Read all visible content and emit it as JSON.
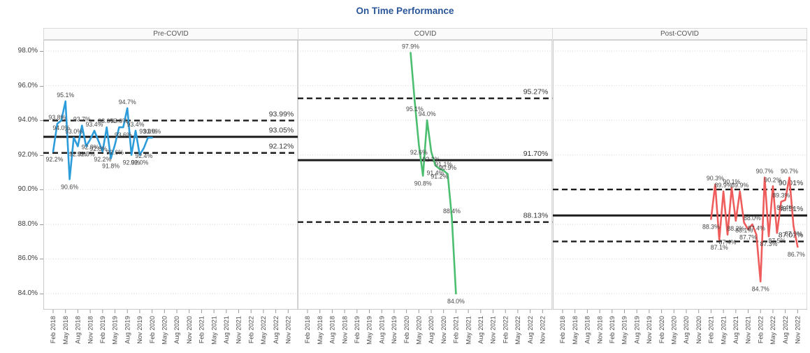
{
  "title": "On Time Performance",
  "colors": {
    "title_text": "#2a5699",
    "grid": "#d2d2d2",
    "panel_border": "#c9c9c9",
    "header_bg": "#fbfafa",
    "reference_lines": "#1c1c1c",
    "data_label": "#464646",
    "axis_text": "#4a4a4a"
  },
  "chart_data": {
    "type": "line",
    "title": "On Time Performance",
    "xlabel": "",
    "ylabel": "",
    "grid": "dotted horizontal at every 2%",
    "y_axis": {
      "ticks": [
        "98.0%",
        "96.0%",
        "94.0%",
        "92.0%",
        "90.0%",
        "88.0%",
        "86.0%",
        "84.0%"
      ],
      "tick_values": [
        98.0,
        96.0,
        94.0,
        92.0,
        90.0,
        88.0,
        86.0,
        84.0
      ],
      "ylim": [
        83.1,
        98.65
      ]
    },
    "x_ticks": [
      "Feb 2018",
      "May 2018",
      "Aug 2018",
      "Nov 2018",
      "Feb 2019",
      "May 2019",
      "Aug 2019",
      "Nov 2019",
      "Feb 2020",
      "May 2020",
      "Aug 2020",
      "Nov 2020",
      "Feb 2021",
      "May 2021",
      "Aug 2021",
      "Nov 2021",
      "Feb 2022",
      "May 2022",
      "Aug 2022",
      "Nov 2022"
    ],
    "months_per_tick": 3,
    "x_month_span": 57,
    "panels": [
      {
        "name": "Pre-COVID",
        "color": "#2d9cdb",
        "start_month": 0,
        "values": [
          92.2,
          93.8,
          94.0,
          95.1,
          90.6,
          93.0,
          92.5,
          93.7,
          92.5,
          92.9,
          93.4,
          92.8,
          92.2,
          93.6,
          91.8,
          92.6,
          93.6,
          93.6,
          94.7,
          92.0,
          93.4,
          92.0,
          92.4,
          93.0,
          93.0
        ],
        "point_labels": [
          "92.2%",
          "93.8%",
          "94.0%",
          "95.1%",
          "90.6%",
          "93.0%",
          "92.5%",
          "93.7%",
          "92.5%",
          "92.9%",
          "93.4%",
          "92.8%",
          "92.2%",
          "93.6%",
          "91.8%",
          "92.6%",
          "93.6%",
          "93.6%",
          "94.7%",
          "92.0%",
          "93.4%",
          "92.0%",
          "92.4%",
          "93.0%",
          "93.0%"
        ],
        "control_limits": {
          "ucl": 93.99,
          "mean": 93.05,
          "lcl": 92.12,
          "ucl_label": "93.99%",
          "mean_label": "93.05%",
          "lcl_label": "92.12%"
        }
      },
      {
        "name": "COVID",
        "color": "#4cbe70",
        "start_month": 25,
        "values": [
          97.9,
          95.1,
          92.6,
          90.8,
          94.0,
          92.2,
          91.4,
          91.2,
          91.1,
          90.9,
          88.4,
          84.0
        ],
        "point_labels": [
          "97.9%",
          "95.1%",
          "92.6%",
          "90.8%",
          "94.0%",
          "92.2%",
          "91.4%",
          "91.2%",
          "91.1%",
          "90.9%",
          "88.4%",
          "84.0%"
        ],
        "control_limits": {
          "ucl": 95.27,
          "mean": 91.7,
          "lcl": 88.13,
          "ucl_label": "95.27%",
          "mean_label": "91.70%",
          "lcl_label": "88.13%"
        }
      },
      {
        "name": "Post-COVID",
        "color": "#ef5c5c",
        "start_month": 36,
        "values": [
          88.3,
          90.3,
          87.1,
          89.9,
          87.4,
          90.1,
          88.2,
          89.9,
          88.1,
          87.7,
          88.0,
          87.4,
          84.7,
          90.7,
          87.3,
          90.2,
          87.5,
          89.3,
          89.4,
          90.7,
          87.9,
          86.7
        ],
        "point_labels": [
          "88.3%",
          "90.3%",
          "87.1%",
          "89.9%",
          "87.4%",
          "90.1%",
          "88.2%",
          "89.9%",
          "88.1%",
          "87.7%",
          "88.0%",
          "87.4%",
          "84.7%",
          "90.7%",
          "87.3%",
          "90.2%",
          "87.5%",
          "89.3%",
          "89.4%",
          "90.7%",
          "87.9%",
          "86.7%"
        ],
        "control_limits": {
          "ucl": 90.01,
          "mean": 88.51,
          "lcl": 87.01,
          "ucl_label": "90.01%",
          "mean_label": "88.51%",
          "lcl_label": "87.01%"
        }
      }
    ]
  }
}
